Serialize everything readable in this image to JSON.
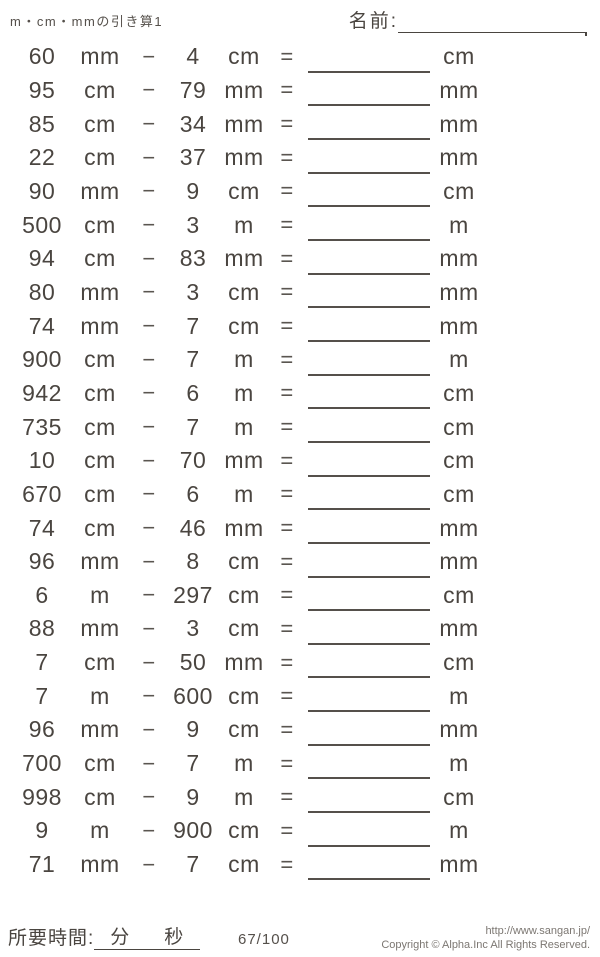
{
  "header": {
    "title": "m・cm・mmの引き算1",
    "name_label": "名前:"
  },
  "symbols": {
    "minus": "−",
    "equals": "="
  },
  "problems": [
    {
      "a": "60",
      "a_unit": "mm",
      "b": "4",
      "b_unit": "cm",
      "ans_unit": "cm"
    },
    {
      "a": "95",
      "a_unit": "cm",
      "b": "79",
      "b_unit": "mm",
      "ans_unit": "mm"
    },
    {
      "a": "85",
      "a_unit": "cm",
      "b": "34",
      "b_unit": "mm",
      "ans_unit": "mm"
    },
    {
      "a": "22",
      "a_unit": "cm",
      "b": "37",
      "b_unit": "mm",
      "ans_unit": "mm"
    },
    {
      "a": "90",
      "a_unit": "mm",
      "b": "9",
      "b_unit": "cm",
      "ans_unit": "cm"
    },
    {
      "a": "500",
      "a_unit": "cm",
      "b": "3",
      "b_unit": "m",
      "ans_unit": "m"
    },
    {
      "a": "94",
      "a_unit": "cm",
      "b": "83",
      "b_unit": "mm",
      "ans_unit": "mm"
    },
    {
      "a": "80",
      "a_unit": "mm",
      "b": "3",
      "b_unit": "cm",
      "ans_unit": "mm"
    },
    {
      "a": "74",
      "a_unit": "mm",
      "b": "7",
      "b_unit": "cm",
      "ans_unit": "mm"
    },
    {
      "a": "900",
      "a_unit": "cm",
      "b": "7",
      "b_unit": "m",
      "ans_unit": "m"
    },
    {
      "a": "942",
      "a_unit": "cm",
      "b": "6",
      "b_unit": "m",
      "ans_unit": "cm"
    },
    {
      "a": "735",
      "a_unit": "cm",
      "b": "7",
      "b_unit": "m",
      "ans_unit": "cm"
    },
    {
      "a": "10",
      "a_unit": "cm",
      "b": "70",
      "b_unit": "mm",
      "ans_unit": "cm"
    },
    {
      "a": "670",
      "a_unit": "cm",
      "b": "6",
      "b_unit": "m",
      "ans_unit": "cm"
    },
    {
      "a": "74",
      "a_unit": "cm",
      "b": "46",
      "b_unit": "mm",
      "ans_unit": "mm"
    },
    {
      "a": "96",
      "a_unit": "mm",
      "b": "8",
      "b_unit": "cm",
      "ans_unit": "mm"
    },
    {
      "a": "6",
      "a_unit": "m",
      "b": "297",
      "b_unit": "cm",
      "ans_unit": "cm"
    },
    {
      "a": "88",
      "a_unit": "mm",
      "b": "3",
      "b_unit": "cm",
      "ans_unit": "mm"
    },
    {
      "a": "7",
      "a_unit": "cm",
      "b": "50",
      "b_unit": "mm",
      "ans_unit": "cm"
    },
    {
      "a": "7",
      "a_unit": "m",
      "b": "600",
      "b_unit": "cm",
      "ans_unit": "m"
    },
    {
      "a": "96",
      "a_unit": "mm",
      "b": "9",
      "b_unit": "cm",
      "ans_unit": "mm"
    },
    {
      "a": "700",
      "a_unit": "cm",
      "b": "7",
      "b_unit": "m",
      "ans_unit": "m"
    },
    {
      "a": "998",
      "a_unit": "cm",
      "b": "9",
      "b_unit": "m",
      "ans_unit": "cm"
    },
    {
      "a": "9",
      "a_unit": "m",
      "b": "900",
      "b_unit": "cm",
      "ans_unit": "m"
    },
    {
      "a": "71",
      "a_unit": "mm",
      "b": "7",
      "b_unit": "cm",
      "ans_unit": "mm"
    }
  ],
  "footer": {
    "time_label": "所要時間:",
    "minutes_label": "分",
    "seconds_label": "秒",
    "page_number": "67/100",
    "url": "http://www.sangan.jp/",
    "copyright": "Copyright © Alpha.Inc All Rights Reserved."
  }
}
